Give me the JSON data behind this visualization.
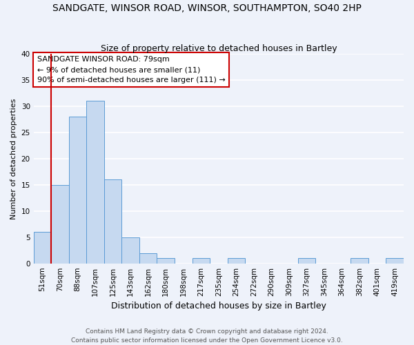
{
  "title": "SANDGATE, WINSOR ROAD, WINSOR, SOUTHAMPTON, SO40 2HP",
  "subtitle": "Size of property relative to detached houses in Bartley",
  "xlabel": "Distribution of detached houses by size in Bartley",
  "ylabel": "Number of detached properties",
  "bin_labels": [
    "51sqm",
    "70sqm",
    "88sqm",
    "107sqm",
    "125sqm",
    "143sqm",
    "162sqm",
    "180sqm",
    "198sqm",
    "217sqm",
    "235sqm",
    "254sqm",
    "272sqm",
    "290sqm",
    "309sqm",
    "327sqm",
    "345sqm",
    "364sqm",
    "382sqm",
    "401sqm",
    "419sqm"
  ],
  "values": [
    6,
    15,
    28,
    31,
    16,
    5,
    2,
    1,
    0,
    1,
    0,
    1,
    0,
    0,
    0,
    1,
    0,
    0,
    1,
    0,
    1
  ],
  "bar_color": "#c6d9f0",
  "bar_edge_color": "#5b9bd5",
  "red_line_x": 0.5,
  "ylim": [
    0,
    40
  ],
  "yticks": [
    0,
    5,
    10,
    15,
    20,
    25,
    30,
    35,
    40
  ],
  "annotation_text_line1": "SANDGATE WINSOR ROAD: 79sqm",
  "annotation_text_line2": "← 9% of detached houses are smaller (11)",
  "annotation_text_line3": "90% of semi-detached houses are larger (111) →",
  "footer_line1": "Contains HM Land Registry data © Crown copyright and database right 2024.",
  "footer_line2": "Contains public sector information licensed under the Open Government Licence v3.0.",
  "background_color": "#eef2fa",
  "grid_color": "#ffffff",
  "annotation_border_color": "#cc0000",
  "title_fontsize": 10,
  "subtitle_fontsize": 9,
  "xlabel_fontsize": 9,
  "ylabel_fontsize": 8,
  "tick_fontsize": 7.5,
  "footer_fontsize": 6.5,
  "annotation_fontsize": 8
}
